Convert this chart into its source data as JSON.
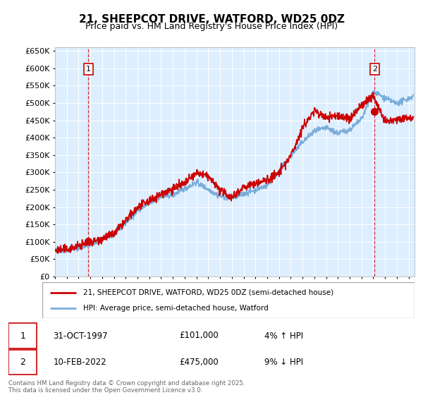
{
  "title": "21, SHEEPCOT DRIVE, WATFORD, WD25 0DZ",
  "subtitle": "Price paid vs. HM Land Registry's House Price Index (HPI)",
  "legend_line1": "21, SHEEPCOT DRIVE, WATFORD, WD25 0DZ (semi-detached house)",
  "legend_line2": "HPI: Average price, semi-detached house, Watford",
  "footnote": "Contains HM Land Registry data © Crown copyright and database right 2025.\nThis data is licensed under the Open Government Licence v3.0.",
  "sale1_label": "1",
  "sale1_date": "31-OCT-1997",
  "sale1_price": "£101,000",
  "sale1_hpi": "4% ↑ HPI",
  "sale2_label": "2",
  "sale2_date": "10-FEB-2022",
  "sale2_price": "£475,000",
  "sale2_hpi": "9% ↓ HPI",
  "ylim": [
    0,
    660000
  ],
  "ytick_step": 50000,
  "xmin": 1995.0,
  "xmax": 2025.5,
  "hpi_color": "#7aadda",
  "price_color": "#cc0000",
  "sale1_x": 1997.83,
  "sale1_y": 101000,
  "sale2_x": 2022.12,
  "sale2_y": 475000,
  "bg_color": "#ddeeff"
}
